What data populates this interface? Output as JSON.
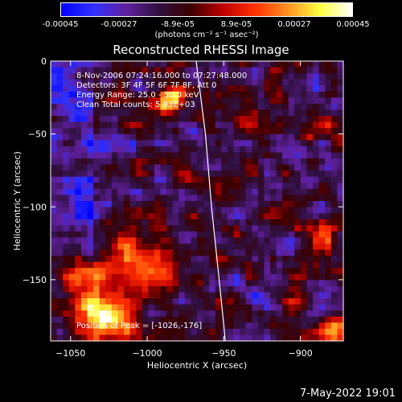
{
  "chart_data": {
    "type": "heatmap",
    "title": "Reconstructed RHESSI Image",
    "xlabel": "Heliocentric X (arcsec)",
    "ylabel": "Heliocentric Y (arcsec)",
    "xlim": [
      -1063,
      -872
    ],
    "ylim": [
      -192,
      0
    ],
    "x_ticks": [
      -1050,
      -1000,
      -950,
      -900
    ],
    "y_ticks": [
      0,
      -50,
      -100,
      -150
    ],
    "colorbar": {
      "ticks": [
        "-0.00045",
        "-0.00027",
        "-8.9e-05",
        "8.9e-05",
        "0.00027",
        "0.00045"
      ],
      "tick_values": [
        -0.00045,
        -0.00027,
        -8.9e-05,
        8.9e-05,
        0.00027,
        0.00045
      ],
      "units": "(photons cm⁻² s⁻¹ asec⁻²)",
      "range": [
        -0.00045,
        0.00045
      ]
    },
    "annotations": {
      "time": "8-Nov-2006 07:24:16.000 to 07:27:48.000",
      "detectors": "Detectors: 3F 4F 5F 6F 7F 8F, Att 0",
      "energy": "Energy Range: 25.0 - 50.0 keV",
      "clean": "Clean    Total counts: 5.83E+03",
      "peak": "Position of Peak = [-1026,-176]"
    },
    "limb_curve": [
      [
        -968,
        0
      ],
      [
        -962,
        -50
      ],
      [
        -958,
        -100
      ],
      [
        -953,
        -150
      ],
      [
        -949,
        -192
      ]
    ],
    "peak_position": [
      -1026,
      -176
    ]
  },
  "footer": {
    "date": "7-May-2022 19:01"
  },
  "colors": {
    "background": "#000000",
    "foreground": "#ffffff",
    "colormap_stops": [
      "#0000ff",
      "#3030ff",
      "#6020a0",
      "#301040",
      "#3a0000",
      "#c00000",
      "#ff3000",
      "#ff9020",
      "#ffff40",
      "#ffffff"
    ]
  }
}
